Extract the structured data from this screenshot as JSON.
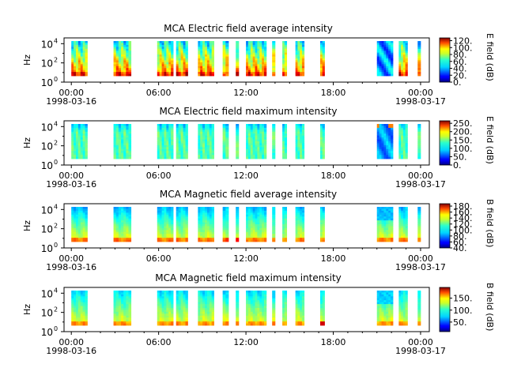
{
  "chart_data": [
    {
      "type": "heatmap",
      "title": "MCA  Electric field average intensity",
      "ylabel": "Hz",
      "y_scale": "log",
      "yticks": [
        {
          "base": "10",
          "exp": "0"
        },
        {
          "base": "10",
          "exp": "2"
        },
        {
          "base": "10",
          "exp": "4"
        }
      ],
      "xticks": [
        "00:00",
        "06:00",
        "12:00",
        "18:00",
        "00:00"
      ],
      "xdates": [
        "1998-03-16",
        "1998-03-17"
      ],
      "x_range_hours": [
        -0.5,
        24.6
      ],
      "colorbar": {
        "label": "E field (dB)",
        "ticks": [
          "0.",
          "20.",
          "40.",
          "60.",
          "80.",
          "100.",
          "120."
        ],
        "range": [
          0,
          128
        ]
      },
      "style": "avg_e"
    },
    {
      "type": "heatmap",
      "title": "MCA  Electric field maximum intensity",
      "ylabel": "Hz",
      "y_scale": "log",
      "yticks": [
        {
          "base": "10",
          "exp": "0"
        },
        {
          "base": "10",
          "exp": "2"
        },
        {
          "base": "10",
          "exp": "4"
        }
      ],
      "xticks": [
        "00:00",
        "06:00",
        "12:00",
        "18:00",
        "00:00"
      ],
      "xdates": [
        "1998-03-16",
        "1998-03-17"
      ],
      "x_range_hours": [
        -0.5,
        24.6
      ],
      "colorbar": {
        "label": "E field (dB)",
        "ticks": [
          "0.",
          "50.",
          "100.",
          "150.",
          "200.",
          "250."
        ],
        "range": [
          0,
          265
        ]
      },
      "style": "max_e"
    },
    {
      "type": "heatmap",
      "title": "MCA  Magnetic field average intensity",
      "ylabel": "Hz",
      "y_scale": "log",
      "yticks": [
        {
          "base": "10",
          "exp": "0"
        },
        {
          "base": "10",
          "exp": "2"
        },
        {
          "base": "10",
          "exp": "4"
        }
      ],
      "xticks": [
        "00:00",
        "06:00",
        "12:00",
        "18:00",
        "00:00"
      ],
      "xdates": [
        "1998-03-16",
        "1998-03-17"
      ],
      "x_range_hours": [
        -0.5,
        24.6
      ],
      "colorbar": {
        "label": "B field (dB)",
        "ticks": [
          "40.",
          "60.",
          "80.",
          "100.",
          "120.",
          "140.",
          "160.",
          "180."
        ],
        "range": [
          40,
          188
        ]
      },
      "style": "avg_b"
    },
    {
      "type": "heatmap",
      "title": "MCA  Magnetic field maximum intensity",
      "ylabel": "Hz",
      "y_scale": "log",
      "yticks": [
        {
          "base": "10",
          "exp": "0"
        },
        {
          "base": "10",
          "exp": "2"
        },
        {
          "base": "10",
          "exp": "4"
        }
      ],
      "xticks": [
        "00:00",
        "06:00",
        "12:00",
        "18:00",
        "00:00"
      ],
      "xdates": [
        "1998-03-16",
        "1998-03-17"
      ],
      "x_range_hours": [
        -0.5,
        24.6
      ],
      "colorbar": {
        "label": "B field (dB)",
        "ticks": [
          "50.",
          "100.",
          "150."
        ],
        "range": [
          10,
          195
        ]
      },
      "style": "max_b"
    }
  ],
  "data_intervals_hours": [
    [
      0.0,
      1.1
    ],
    [
      2.9,
      4.1
    ],
    [
      5.9,
      7.0
    ],
    [
      7.2,
      8.0
    ],
    [
      8.7,
      9.8
    ],
    [
      10.4,
      10.8
    ],
    [
      11.3,
      11.5
    ],
    [
      12.0,
      13.4
    ],
    [
      13.8,
      14.0
    ],
    [
      14.5,
      14.8
    ],
    [
      15.4,
      16.0
    ],
    [
      17.1,
      17.4
    ],
    [
      21.0,
      22.1
    ],
    [
      22.5,
      23.1
    ],
    [
      23.8,
      24.0
    ]
  ]
}
